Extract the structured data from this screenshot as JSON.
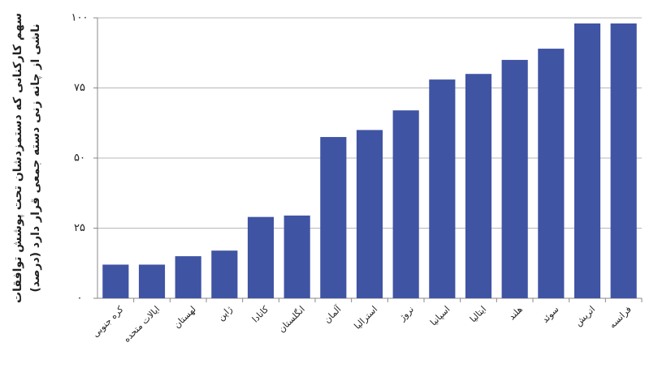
{
  "chart_data": {
    "type": "bar",
    "ylabel": [
      "سهم کارکنانی که دستمزدشان تحت پوشش توافقات",
      "ناشی از چانه زنی دسته جمعی قرار دارد (درصد)"
    ],
    "categories": [
      "کره جنوبی",
      "ایالات متحده",
      "لهستان",
      "ژاپن",
      "کانادا",
      "انگلستان",
      "آلمان",
      "استرالیا",
      "نروژ",
      "اسپانیا",
      "ایتالیا",
      "هلند",
      "سوئد",
      "اتریش",
      "فرانسه"
    ],
    "values": [
      12,
      12,
      15,
      17,
      29,
      29.5,
      57.5,
      60,
      67,
      78,
      80,
      85,
      89,
      98,
      98
    ],
    "color": "#4054a4",
    "ylim": [
      0,
      100
    ],
    "yticks": [
      {
        "value": 0,
        "label": "۰"
      },
      {
        "value": 25,
        "label": "۲۵"
      },
      {
        "value": 50,
        "label": "۵۰"
      },
      {
        "value": 75,
        "label": "۷۵"
      },
      {
        "value": 100,
        "label": "۱۰۰"
      }
    ],
    "grid": true
  }
}
